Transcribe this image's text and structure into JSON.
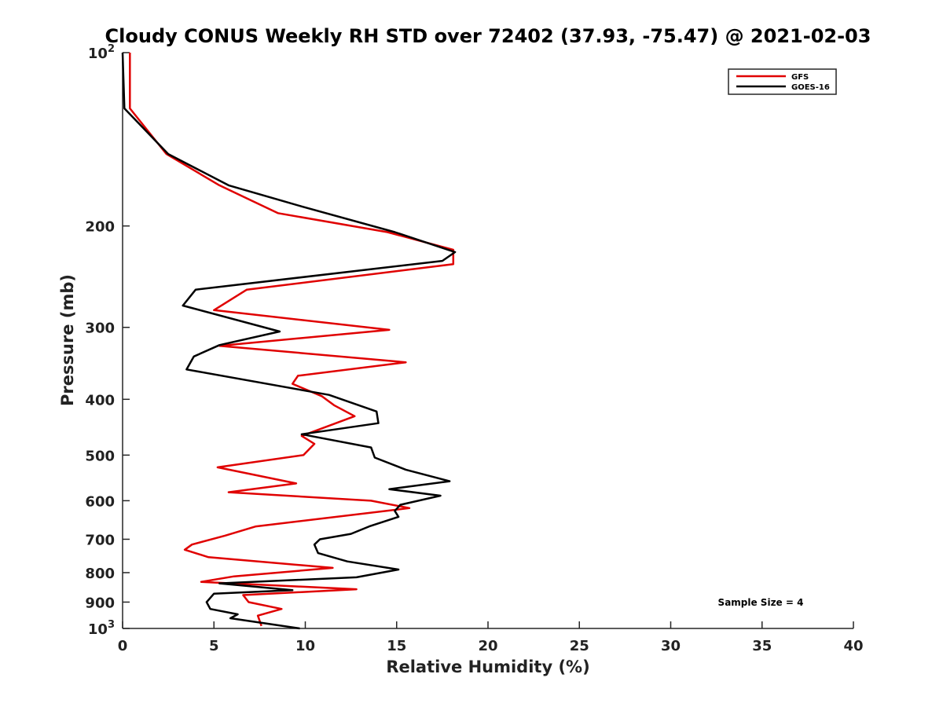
{
  "chart_data": {
    "type": "line",
    "title": "Cloudy CONUS Weekly RH STD over 72402 (37.93, -75.47) @ 2021-02-03",
    "xlabel": "Relative Humidity (%)",
    "ylabel": "Pressure (mb)",
    "xlim": [
      0,
      40
    ],
    "ylim": [
      100,
      1000
    ],
    "y_scale": "log",
    "y_reversed": true,
    "x_ticks": [
      {
        "value": 0,
        "label": "0"
      },
      {
        "value": 5,
        "label": "5"
      },
      {
        "value": 10,
        "label": "10"
      },
      {
        "value": 15,
        "label": "15"
      },
      {
        "value": 20,
        "label": "20"
      },
      {
        "value": 25,
        "label": "25"
      },
      {
        "value": 30,
        "label": "30"
      },
      {
        "value": 35,
        "label": "35"
      },
      {
        "value": 40,
        "label": "40"
      }
    ],
    "y_ticks": [
      {
        "value": 100,
        "label": "10",
        "sup": "2"
      },
      {
        "value": 200,
        "label": "200"
      },
      {
        "value": 300,
        "label": "300"
      },
      {
        "value": 400,
        "label": "400"
      },
      {
        "value": 500,
        "label": "500"
      },
      {
        "value": 600,
        "label": "600"
      },
      {
        "value": 700,
        "label": "700"
      },
      {
        "value": 800,
        "label": "800"
      },
      {
        "value": 900,
        "label": "900"
      },
      {
        "value": 1000,
        "label": "10",
        "sup": "3"
      }
    ],
    "grid": false,
    "legend_position": "top-right",
    "annotation": "Sample Size = 4",
    "series": [
      {
        "name": "GFS",
        "color": "#e00000",
        "points": [
          [
            0.4,
            100
          ],
          [
            0.4,
            125
          ],
          [
            2.4,
            150
          ],
          [
            5.3,
            170
          ],
          [
            8.5,
            190
          ],
          [
            14.5,
            205
          ],
          [
            18.1,
            220
          ],
          [
            18.1,
            233
          ],
          [
            6.8,
            258
          ],
          [
            5.0,
            280
          ],
          [
            14.6,
            303
          ],
          [
            5.3,
            323
          ],
          [
            15.5,
            345
          ],
          [
            9.6,
            364
          ],
          [
            9.3,
            376
          ],
          [
            10.9,
            395
          ],
          [
            11.6,
            410
          ],
          [
            12.7,
            428
          ],
          [
            9.8,
            463
          ],
          [
            10.5,
            478
          ],
          [
            9.9,
            500
          ],
          [
            5.2,
            525
          ],
          [
            9.5,
            560
          ],
          [
            5.8,
            580
          ],
          [
            13.6,
            600
          ],
          [
            15.7,
            618
          ],
          [
            7.3,
            665
          ],
          [
            5.6,
            690
          ],
          [
            3.8,
            715
          ],
          [
            3.4,
            730
          ],
          [
            4.7,
            752
          ],
          [
            11.5,
            785
          ],
          [
            6.1,
            812
          ],
          [
            4.3,
            830
          ],
          [
            12.8,
            855
          ],
          [
            6.6,
            875
          ],
          [
            6.9,
            900
          ],
          [
            8.7,
            925
          ],
          [
            7.4,
            950
          ],
          [
            7.6,
            990
          ]
        ]
      },
      {
        "name": "GOES-16",
        "color": "#000000",
        "points": [
          [
            0.0,
            100
          ],
          [
            0.1,
            125
          ],
          [
            2.5,
            150
          ],
          [
            5.8,
            170
          ],
          [
            9.8,
            185
          ],
          [
            14.9,
            205
          ],
          [
            18.2,
            222
          ],
          [
            17.5,
            230
          ],
          [
            4.0,
            258
          ],
          [
            3.3,
            275
          ],
          [
            8.6,
            305
          ],
          [
            5.3,
            322
          ],
          [
            3.9,
            337
          ],
          [
            3.5,
            355
          ],
          [
            11.3,
            393
          ],
          [
            13.9,
            420
          ],
          [
            14.0,
            440
          ],
          [
            9.8,
            460
          ],
          [
            13.6,
            485
          ],
          [
            13.8,
            505
          ],
          [
            15.5,
            530
          ],
          [
            17.9,
            555
          ],
          [
            14.6,
            573
          ],
          [
            17.4,
            588
          ],
          [
            15.2,
            610
          ],
          [
            14.9,
            625
          ],
          [
            15.1,
            640
          ],
          [
            13.5,
            665
          ],
          [
            12.5,
            685
          ],
          [
            10.8,
            700
          ],
          [
            10.5,
            715
          ],
          [
            10.7,
            740
          ],
          [
            12.3,
            765
          ],
          [
            15.1,
            790
          ],
          [
            12.8,
            815
          ],
          [
            5.3,
            835
          ],
          [
            9.3,
            858
          ],
          [
            5.0,
            870
          ],
          [
            4.6,
            900
          ],
          [
            4.8,
            925
          ],
          [
            6.3,
            945
          ],
          [
            5.9,
            960
          ],
          [
            9.7,
            1000
          ]
        ]
      }
    ]
  }
}
